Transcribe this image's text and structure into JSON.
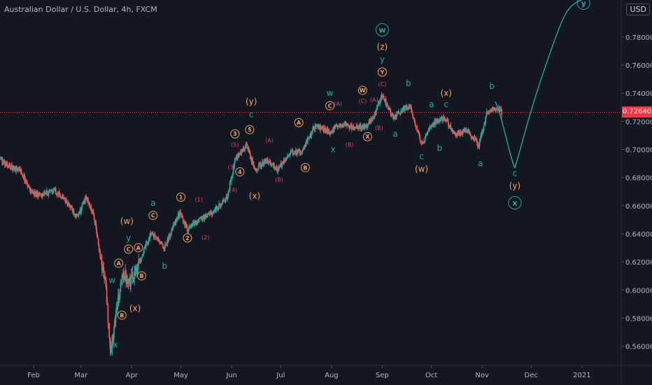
{
  "header": {
    "title": "Australian Dollar / U.S. Dollar, 4h, FXCM",
    "currency": "USD"
  },
  "chart_data": {
    "type": "candlestick",
    "title": "Australian Dollar / U.S. Dollar, 4h, FXCM",
    "y_axis_ticks": [
      "0.78000",
      "0.76000",
      "0.74000",
      "0.72000",
      "0.70000",
      "0.68000",
      "0.66000",
      "0.64000",
      "0.62000",
      "0.60000",
      "0.58000",
      "0.56000"
    ],
    "y_axis_values": [
      0.78,
      0.76,
      0.74,
      0.72,
      0.7,
      0.68,
      0.66,
      0.64,
      0.62,
      0.6,
      0.58,
      0.56
    ],
    "ylim": [
      0.545,
      0.805
    ],
    "x_axis_ticks": [
      "Feb",
      "Mar",
      "Apr",
      "May",
      "Jun",
      "Jul",
      "Aug",
      "Sep",
      "Oct",
      "Nov",
      "Dec",
      "2021"
    ],
    "x_axis_dates": [
      "2020-02-01",
      "2020-03-01",
      "2020-04-01",
      "2020-05-01",
      "2020-06-01",
      "2020-07-01",
      "2020-08-01",
      "2020-09-01",
      "2020-10-01",
      "2020-11-01",
      "2020-12-01",
      "2021-01-01"
    ],
    "current_price": "0.72640",
    "current_price_value": 0.7264,
    "grid": false,
    "price_path": [
      [
        "2020-01-10",
        0.693
      ],
      [
        "2020-01-17",
        0.688
      ],
      [
        "2020-01-24",
        0.685
      ],
      [
        "2020-01-31",
        0.669
      ],
      [
        "2020-02-07",
        0.668
      ],
      [
        "2020-02-14",
        0.671
      ],
      [
        "2020-02-21",
        0.663
      ],
      [
        "2020-02-28",
        0.652
      ],
      [
        "2020-03-04",
        0.666
      ],
      [
        "2020-03-09",
        0.652
      ],
      [
        "2020-03-13",
        0.622
      ],
      [
        "2020-03-16",
        0.605
      ],
      [
        "2020-03-19",
        0.555
      ],
      [
        "2020-03-23",
        0.589
      ],
      [
        "2020-03-27",
        0.612
      ],
      [
        "2020-03-31",
        0.606
      ],
      [
        "2020-04-07",
        0.624
      ],
      [
        "2020-04-13",
        0.641
      ],
      [
        "2020-04-21",
        0.63
      ],
      [
        "2020-04-30",
        0.655
      ],
      [
        "2020-05-05",
        0.643
      ],
      [
        "2020-05-12",
        0.65
      ],
      [
        "2020-05-20",
        0.655
      ],
      [
        "2020-05-29",
        0.665
      ],
      [
        "2020-06-03",
        0.692
      ],
      [
        "2020-06-10",
        0.703
      ],
      [
        "2020-06-15",
        0.686
      ],
      [
        "2020-06-23",
        0.692
      ],
      [
        "2020-06-29",
        0.685
      ],
      [
        "2020-07-06",
        0.697
      ],
      [
        "2020-07-14",
        0.699
      ],
      [
        "2020-07-22",
        0.717
      ],
      [
        "2020-07-31",
        0.712
      ],
      [
        "2020-08-06",
        0.718
      ],
      [
        "2020-08-14",
        0.716
      ],
      [
        "2020-08-21",
        0.716
      ],
      [
        "2020-08-27",
        0.723
      ],
      [
        "2020-09-01",
        0.739
      ],
      [
        "2020-09-08",
        0.722
      ],
      [
        "2020-09-15",
        0.73
      ],
      [
        "2020-09-18",
        0.73
      ],
      [
        "2020-09-25",
        0.703
      ],
      [
        "2020-10-01",
        0.718
      ],
      [
        "2020-10-09",
        0.723
      ],
      [
        "2020-10-16",
        0.71
      ],
      [
        "2020-10-23",
        0.714
      ],
      [
        "2020-10-30",
        0.703
      ],
      [
        "2020-11-04",
        0.726
      ],
      [
        "2020-11-10",
        0.73
      ],
      [
        "2020-11-13",
        0.726
      ]
    ],
    "projection": {
      "color": "#26a69a",
      "points": [
        [
          "2020-11-09",
          0.734
        ],
        [
          "2020-11-21",
          0.687
        ],
        [
          "2020-12-16",
          0.78
        ],
        [
          "2021-01-02",
          0.807
        ]
      ]
    },
    "wave_labels": [
      {
        "text": "w",
        "date": "2020-03-20",
        "price": 0.605,
        "color": "#26a69a"
      },
      {
        "text": "x",
        "date": "2020-03-22",
        "price": 0.559,
        "color": "#26a69a"
      },
      {
        "text": "A",
        "date": "2020-03-24",
        "price": 0.617,
        "color": "#f7a35c",
        "circled": true
      },
      {
        "text": "B",
        "date": "2020-03-26",
        "price": 0.58,
        "color": "#f7a35c",
        "circled": true
      },
      {
        "text": "y",
        "date": "2020-03-30",
        "price": 0.635,
        "color": "#26a69a"
      },
      {
        "text": "C",
        "date": "2020-03-30",
        "price": 0.627,
        "color": "#f7a35c",
        "circled": true
      },
      {
        "text": "(w)",
        "date": "2020-03-29",
        "price": 0.647,
        "color": "#f7a35c"
      },
      {
        "text": "(x)",
        "date": "2020-04-03",
        "price": 0.585,
        "color": "#f7a35c"
      },
      {
        "text": "A",
        "date": "2020-04-05",
        "price": 0.628,
        "color": "#f7a35c",
        "circled": true
      },
      {
        "text": "B",
        "date": "2020-04-07",
        "price": 0.608,
        "color": "#f7a35c",
        "circled": true
      },
      {
        "text": "C",
        "date": "2020-04-14",
        "price": 0.651,
        "color": "#f7a35c",
        "circled": true
      },
      {
        "text": "a",
        "date": "2020-04-14",
        "price": 0.66,
        "color": "#26a69a"
      },
      {
        "text": "b",
        "date": "2020-04-21",
        "price": 0.615,
        "color": "#26a69a"
      },
      {
        "text": "1",
        "date": "2020-05-01",
        "price": 0.664,
        "color": "#f7a35c",
        "circled": true
      },
      {
        "text": "2",
        "date": "2020-05-05",
        "price": 0.635,
        "color": "#f7a35c",
        "circled": true
      },
      {
        "text": "(1)",
        "date": "2020-05-12",
        "price": 0.663,
        "color": "#e0445a"
      },
      {
        "text": "(2)",
        "date": "2020-05-16",
        "price": 0.636,
        "color": "#e0445a"
      },
      {
        "text": "(3)",
        "date": "2020-06-01",
        "price": 0.686,
        "color": "#e0445a"
      },
      {
        "text": "(4)",
        "date": "2020-06-02",
        "price": 0.67,
        "color": "#e0445a"
      },
      {
        "text": "(5)",
        "date": "2020-06-03",
        "price": 0.702,
        "color": "#e0445a"
      },
      {
        "text": "3",
        "date": "2020-06-03",
        "price": 0.709,
        "color": "#f7a35c",
        "circled": true
      },
      {
        "text": "4",
        "date": "2020-06-06",
        "price": 0.682,
        "color": "#f7a35c",
        "circled": true
      },
      {
        "text": "5",
        "date": "2020-06-12",
        "price": 0.712,
        "color": "#f7a35c",
        "circled": true
      },
      {
        "text": "(y)",
        "date": "2020-06-13",
        "price": 0.732,
        "color": "#f7a35c"
      },
      {
        "text": "c",
        "date": "2020-06-13",
        "price": 0.723,
        "color": "#26a69a"
      },
      {
        "text": "(x)",
        "date": "2020-06-15",
        "price": 0.665,
        "color": "#f7a35c"
      },
      {
        "text": "(A)",
        "date": "2020-06-24",
        "price": 0.705,
        "color": "#e0445a"
      },
      {
        "text": "(B)",
        "date": "2020-06-30",
        "price": 0.677,
        "color": "#e0445a"
      },
      {
        "text": "(C)",
        "date": "2020-07-12",
        "price": 0.696,
        "color": "#e0445a"
      },
      {
        "text": "A",
        "date": "2020-07-12",
        "price": 0.717,
        "color": "#f7a35c",
        "circled": true
      },
      {
        "text": "B",
        "date": "2020-07-16",
        "price": 0.685,
        "color": "#f7a35c",
        "circled": true
      },
      {
        "text": "w",
        "date": "2020-07-31",
        "price": 0.738,
        "color": "#26a69a"
      },
      {
        "text": "C",
        "date": "2020-07-31",
        "price": 0.729,
        "color": "#f7a35c",
        "circled": true
      },
      {
        "text": "(A)",
        "date": "2020-08-05",
        "price": 0.731,
        "color": "#e0445a"
      },
      {
        "text": "x",
        "date": "2020-08-02",
        "price": 0.698,
        "color": "#26a69a"
      },
      {
        "text": "(B)",
        "date": "2020-08-12",
        "price": 0.702,
        "color": "#e0445a"
      },
      {
        "text": "W",
        "date": "2020-08-20",
        "price": 0.74,
        "color": "#f7a35c",
        "circled": true
      },
      {
        "text": "(C)",
        "date": "2020-08-20",
        "price": 0.733,
        "color": "#e0445a"
      },
      {
        "text": "X",
        "date": "2020-08-23",
        "price": 0.707,
        "color": "#f7a35c",
        "circled": true
      },
      {
        "text": "(A)",
        "date": "2020-08-27",
        "price": 0.734,
        "color": "#e0445a"
      },
      {
        "text": "(B)",
        "date": "2020-08-30",
        "price": 0.714,
        "color": "#e0445a"
      },
      {
        "text": "Y",
        "date": "2020-09-01",
        "price": 0.753,
        "color": "#f7a35c",
        "circled": true
      },
      {
        "text": "(C)",
        "date": "2020-09-01",
        "price": 0.745,
        "color": "#e0445a"
      },
      {
        "text": "y",
        "date": "2020-09-01",
        "price": 0.762,
        "color": "#26a69a"
      },
      {
        "text": "(z)",
        "date": "2020-09-01",
        "price": 0.771,
        "color": "#f7a35c"
      },
      {
        "text": "w",
        "date": "2020-09-01",
        "price": 0.783,
        "color": "#26a69a",
        "circled": true
      },
      {
        "text": "b",
        "date": "2020-09-17",
        "price": 0.745,
        "color": "#26a69a"
      },
      {
        "text": "a",
        "date": "2020-09-09",
        "price": 0.709,
        "color": "#26a69a"
      },
      {
        "text": "c",
        "date": "2020-09-25",
        "price": 0.693,
        "color": "#26a69a"
      },
      {
        "text": "(w)",
        "date": "2020-09-25",
        "price": 0.684,
        "color": "#f7a35c"
      },
      {
        "text": "a",
        "date": "2020-10-01",
        "price": 0.73,
        "color": "#26a69a"
      },
      {
        "text": "(x)",
        "date": "2020-10-10",
        "price": 0.738,
        "color": "#f7a35c"
      },
      {
        "text": "c",
        "date": "2020-10-10",
        "price": 0.73,
        "color": "#26a69a"
      },
      {
        "text": "b",
        "date": "2020-10-06",
        "price": 0.699,
        "color": "#26a69a"
      },
      {
        "text": "a",
        "date": "2020-10-31",
        "price": 0.688,
        "color": "#26a69a"
      },
      {
        "text": "b",
        "date": "2020-11-07",
        "price": 0.743,
        "color": "#26a69a"
      },
      {
        "text": "c",
        "date": "2020-11-21",
        "price": 0.681,
        "color": "#26a69a"
      },
      {
        "text": "(y)",
        "date": "2020-11-21",
        "price": 0.672,
        "color": "#f7a35c"
      },
      {
        "text": "x",
        "date": "2020-11-21",
        "price": 0.66,
        "color": "#26a69a",
        "circled": true
      },
      {
        "text": "y",
        "date": "2021-01-02",
        "price": 0.802,
        "color": "#26a69a",
        "circled": true
      }
    ],
    "colors": {
      "background": "#131722",
      "up": "#26a69a",
      "down": "#ef5350",
      "projection": "#26a69a",
      "price_line": "#f23645",
      "axis_text": "#b2b5be"
    }
  }
}
